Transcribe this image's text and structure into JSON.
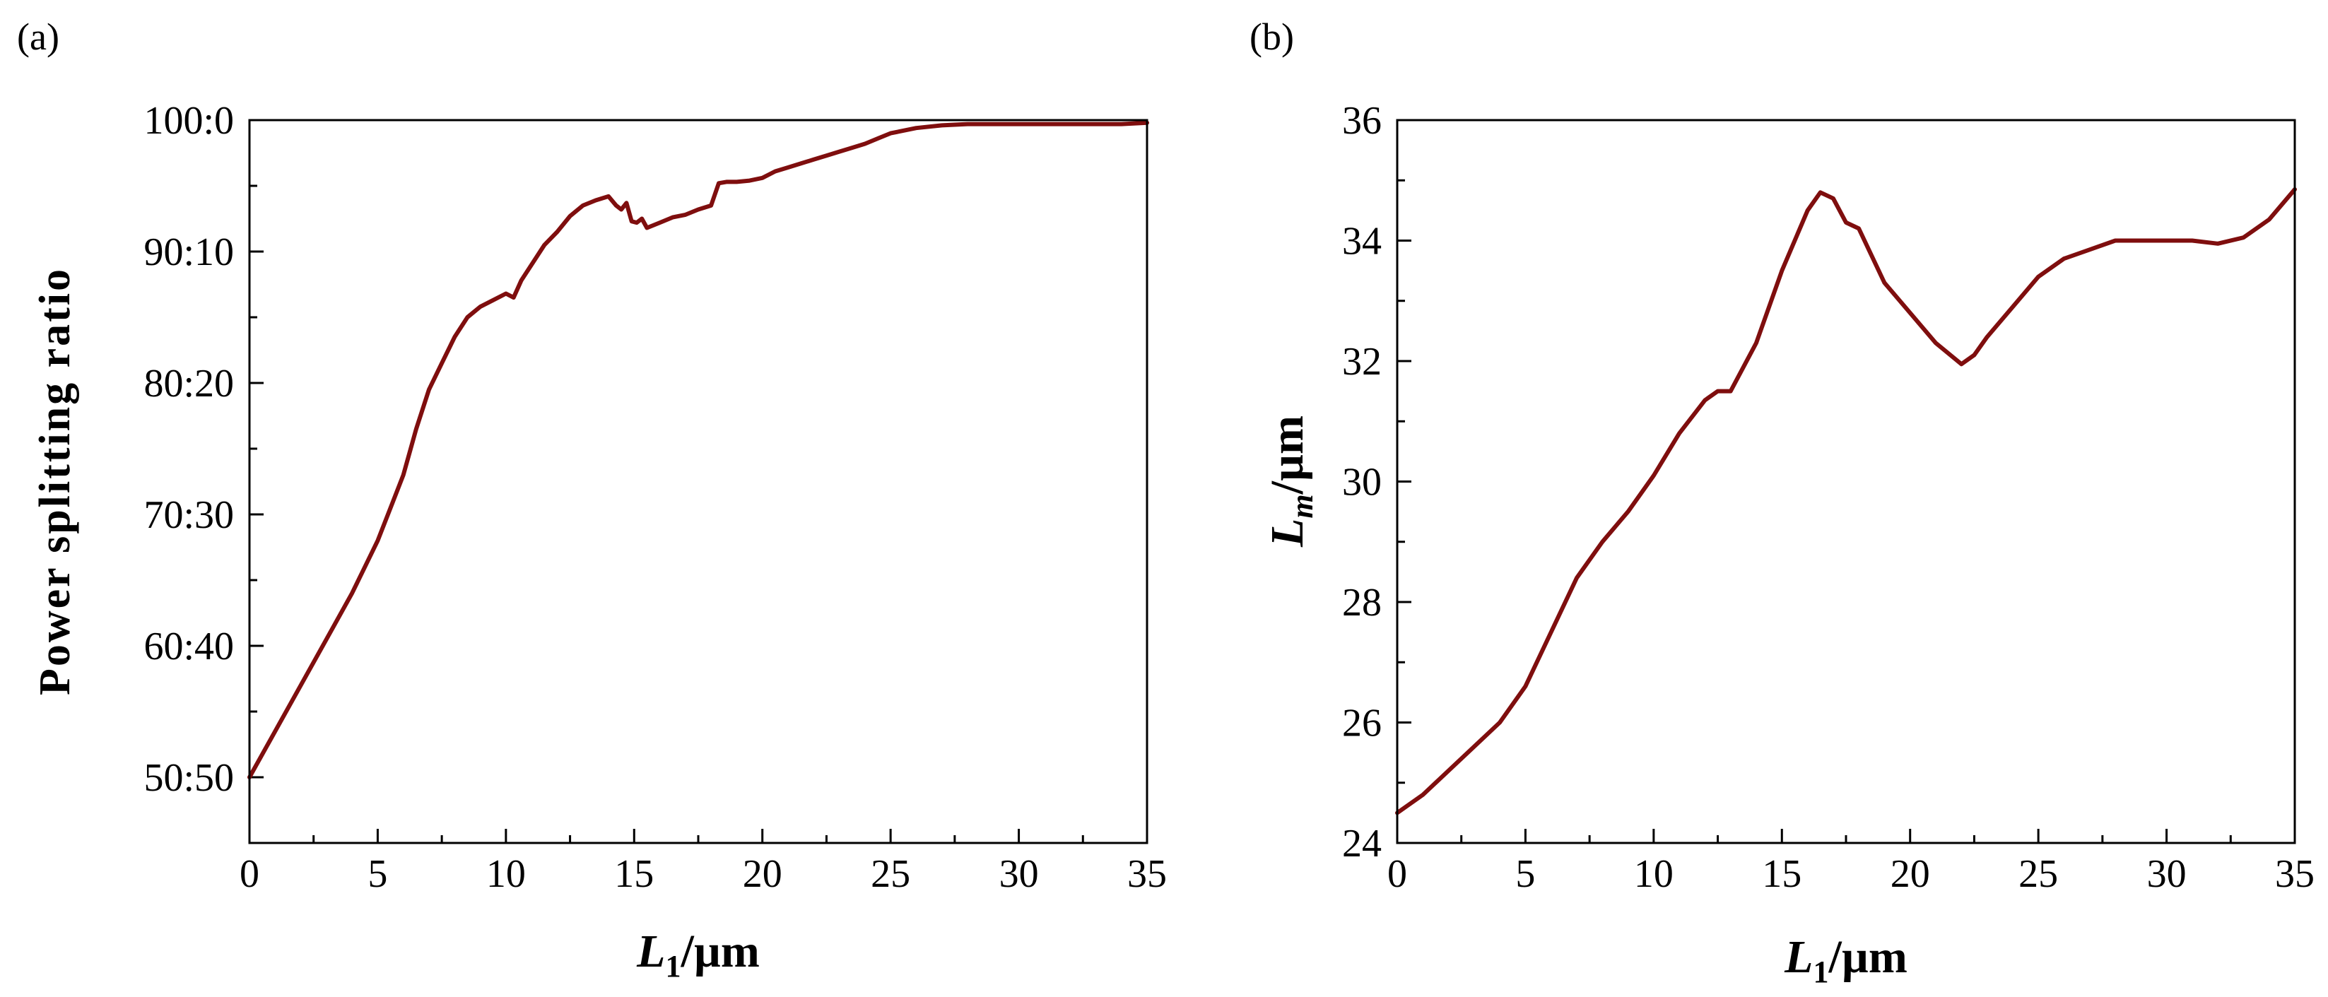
{
  "chart_data": [
    {
      "type": "line",
      "panel_label": "(a)",
      "xlabel": {
        "main": "L",
        "sub": "1",
        "unit": "/µm"
      },
      "ylabel": "Power splitting ratio",
      "xlim": [
        0,
        35
      ],
      "ylim": [
        45,
        100
      ],
      "xticks": [
        {
          "v": 0,
          "label": "0"
        },
        {
          "v": 5,
          "label": "5"
        },
        {
          "v": 10,
          "label": "10"
        },
        {
          "v": 15,
          "label": "15"
        },
        {
          "v": 20,
          "label": "20"
        },
        {
          "v": 25,
          "label": "25"
        },
        {
          "v": 30,
          "label": "30"
        },
        {
          "v": 35,
          "label": "35"
        }
      ],
      "yticks": [
        {
          "v": 50,
          "label": "50:50"
        },
        {
          "v": 60,
          "label": "60:40"
        },
        {
          "v": 70,
          "label": "70:30"
        },
        {
          "v": 80,
          "label": "80:20"
        },
        {
          "v": 90,
          "label": "90:10"
        },
        {
          "v": 100,
          "label": "100:0"
        }
      ],
      "color": "#7f0e0e",
      "series": [
        {
          "name": "splitting ratio",
          "x": [
            0,
            1,
            2,
            3,
            4,
            5,
            5.5,
            6,
            6.5,
            7,
            7.5,
            8,
            8.5,
            9,
            9.5,
            10,
            10.3,
            10.6,
            11,
            11.5,
            12,
            12.5,
            13,
            13.5,
            14,
            14.3,
            14.5,
            14.7,
            14.9,
            15.1,
            15.3,
            15.5,
            16,
            16.5,
            17,
            17.5,
            18,
            18.3,
            18.6,
            19,
            19.5,
            20,
            20.5,
            21,
            21.5,
            22,
            22.5,
            23,
            23.5,
            24,
            24.5,
            25,
            26,
            27,
            28,
            29,
            30,
            31,
            32,
            33,
            34,
            35
          ],
          "y": [
            50,
            53.5,
            57,
            60.5,
            64,
            68,
            70.5,
            73,
            76.5,
            79.5,
            81.5,
            83.5,
            85,
            85.8,
            86.3,
            86.8,
            86.5,
            87.8,
            89,
            90.5,
            91.5,
            92.7,
            93.5,
            93.9,
            94.2,
            93.5,
            93.2,
            93.7,
            92.3,
            92.2,
            92.5,
            91.8,
            92.2,
            92.6,
            92.8,
            93.2,
            93.5,
            95.2,
            95.3,
            95.3,
            95.4,
            95.6,
            96.1,
            96.4,
            96.7,
            97,
            97.3,
            97.6,
            97.9,
            98.2,
            98.6,
            99,
            99.4,
            99.6,
            99.7,
            99.7,
            99.7,
            99.7,
            99.7,
            99.7,
            99.7,
            99.8
          ]
        }
      ]
    },
    {
      "type": "line",
      "panel_label": "(b)",
      "xlabel": {
        "main": "L",
        "sub": "1",
        "unit": "/µm"
      },
      "ylabel": {
        "main": "L",
        "sub": "m",
        "unit": "/µm"
      },
      "xlim": [
        0,
        35
      ],
      "ylim": [
        24,
        36
      ],
      "xticks": [
        {
          "v": 0,
          "label": "0"
        },
        {
          "v": 5,
          "label": "5"
        },
        {
          "v": 10,
          "label": "10"
        },
        {
          "v": 15,
          "label": "15"
        },
        {
          "v": 20,
          "label": "20"
        },
        {
          "v": 25,
          "label": "25"
        },
        {
          "v": 30,
          "label": "30"
        },
        {
          "v": 35,
          "label": "35"
        }
      ],
      "yticks": [
        {
          "v": 24,
          "label": "24"
        },
        {
          "v": 26,
          "label": "26"
        },
        {
          "v": 28,
          "label": "28"
        },
        {
          "v": 30,
          "label": "30"
        },
        {
          "v": 32,
          "label": "32"
        },
        {
          "v": 34,
          "label": "34"
        },
        {
          "v": 36,
          "label": "36"
        }
      ],
      "color": "#7f0e0e",
      "series": [
        {
          "name": "Lm",
          "x": [
            0,
            1,
            2,
            3,
            4,
            5,
            6,
            7,
            8,
            9,
            10,
            11,
            12,
            12.5,
            13,
            14,
            15,
            16,
            16.5,
            17,
            17.5,
            18,
            19,
            20,
            21,
            22,
            22.5,
            23,
            24,
            25,
            26,
            27,
            28,
            29,
            30,
            31,
            32,
            33,
            34,
            35
          ],
          "y": [
            24.5,
            24.8,
            25.2,
            25.6,
            26.0,
            26.6,
            27.5,
            28.4,
            29.0,
            29.5,
            30.1,
            30.8,
            31.35,
            31.5,
            31.5,
            32.3,
            33.5,
            34.5,
            34.8,
            34.7,
            34.3,
            34.2,
            33.3,
            32.8,
            32.3,
            31.95,
            32.1,
            32.4,
            32.9,
            33.4,
            33.7,
            33.85,
            34.0,
            34.0,
            34.0,
            34.0,
            33.95,
            34.05,
            34.35,
            34.85
          ]
        }
      ]
    }
  ]
}
